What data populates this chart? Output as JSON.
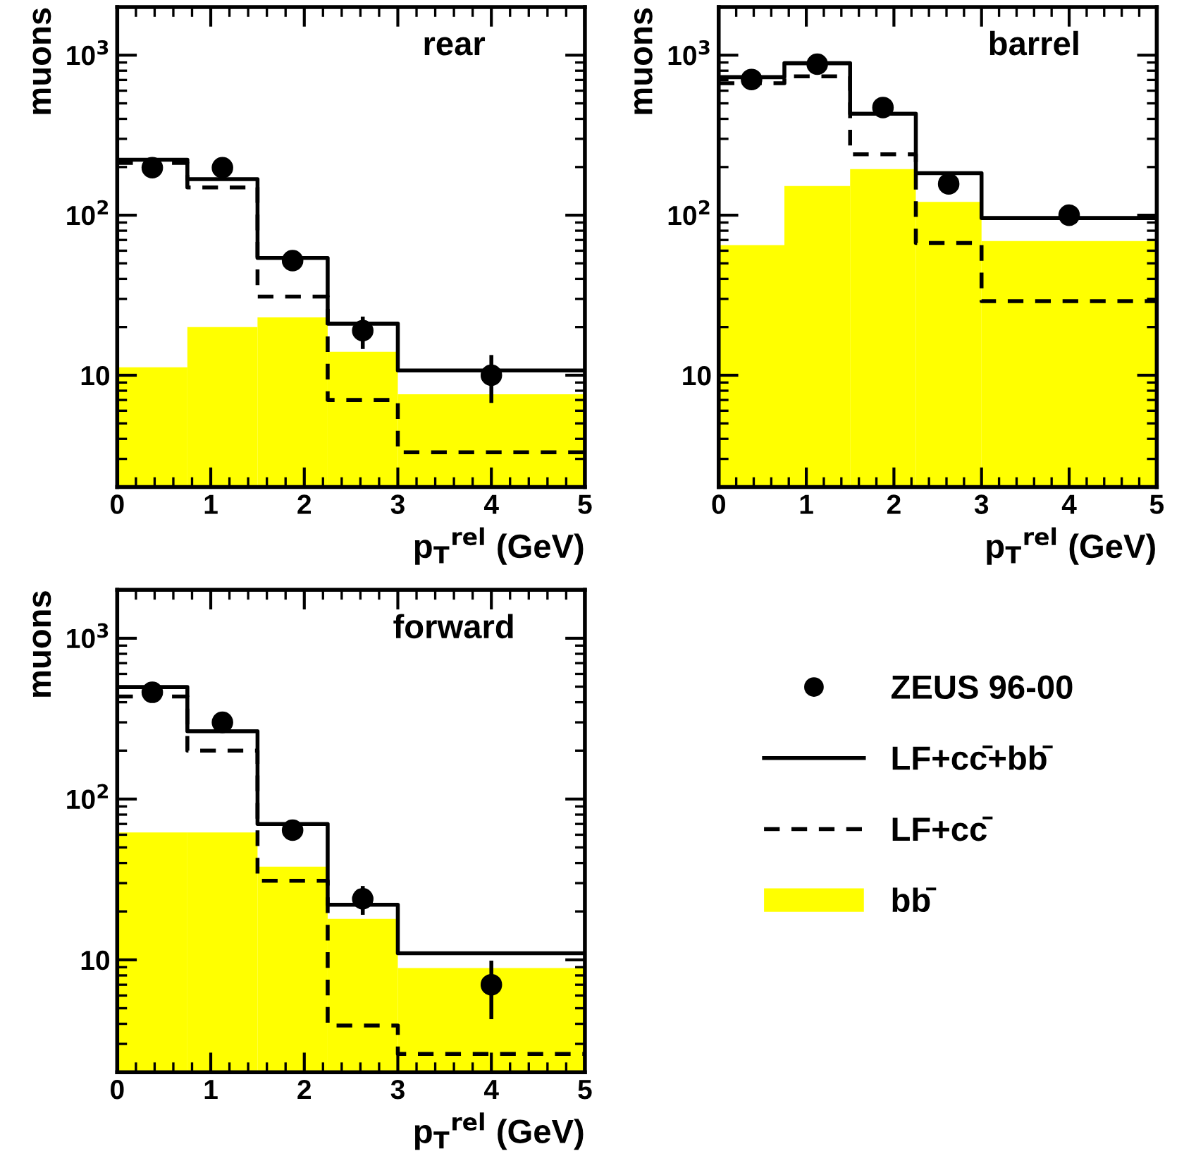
{
  "chart_data": [
    {
      "type": "histogram",
      "bins": [
        0,
        0.75,
        1.5,
        2.25,
        3,
        5
      ],
      "annotations": [
        "rear"
      ],
      "xlabel": "p$_{T}$$^{rel}$ (GeV)",
      "ylabel": "muons",
      "log": "y",
      "grid": false,
      "xlim": [
        0,
        5
      ],
      "xticks": [
        0,
        1,
        2,
        3,
        4,
        5
      ],
      "ylim": [
        2,
        2000
      ],
      "yticks": [
        {
          "value": 10,
          "label": "10"
        },
        {
          "value": 100,
          "label": "10$^{2}$"
        },
        {
          "value": 1000,
          "label": "10$^{3}$"
        }
      ],
      "series": [
        {
          "type": "scatter",
          "marker": "circle",
          "color": "#000000",
          "x": [
            0.375,
            1.125,
            1.875,
            2.625,
            4
          ],
          "values": [
            198,
            198,
            52,
            19,
            10
          ],
          "errors": [
            null,
            null,
            null,
            [
              15,
              22.6
            ],
            [
              6.9,
              13
            ]
          ]
        },
        {
          "type": "step",
          "line_style": "solid",
          "color": "#000000",
          "x": [
            0,
            0.75,
            1.5,
            2.25,
            3,
            5
          ],
          "values": [
            222,
            168,
            54,
            21,
            10.7,
            10.7
          ]
        },
        {
          "type": "step",
          "line_style": "dashed",
          "color": "#000000",
          "x": [
            0,
            0.75,
            1.5,
            2.25,
            3,
            5
          ],
          "values": [
            212,
            149,
            31,
            7.0,
            3.3,
            3.3
          ]
        },
        {
          "color": "#ffff00",
          "values": [
            11.2,
            20,
            23,
            14,
            7.6
          ]
        }
      ]
    },
    {
      "type": "histogram",
      "bins": [
        0,
        0.75,
        1.5,
        2.25,
        3,
        5
      ],
      "annotations": [
        "barrel"
      ],
      "xlabel": "p$_{T}$$^{rel}$ (GeV)",
      "ylabel": "muons",
      "log": "y",
      "grid": false,
      "xlim": [
        0,
        5
      ],
      "xticks": [
        0,
        1,
        2,
        3,
        4,
        5
      ],
      "ylim": [
        2,
        2000
      ],
      "yticks": [
        {
          "value": 10,
          "label": "10"
        },
        {
          "value": 100,
          "label": "10$^{2}$"
        },
        {
          "value": 1000,
          "label": "10$^{3}$"
        }
      ],
      "series": [
        {
          "type": "scatter",
          "marker": "circle",
          "color": "#000000",
          "x": [
            0.375,
            1.125,
            1.875,
            2.625,
            4
          ],
          "values": [
            705,
            879,
            471,
            157,
            100
          ]
        },
        {
          "type": "step",
          "line_style": "solid",
          "color": "#000000",
          "x": [
            0,
            0.75,
            1.5,
            2.25,
            3,
            5
          ],
          "values": [
            729,
            891,
            431,
            183,
            96,
            96
          ]
        },
        {
          "type": "step",
          "line_style": "dashed",
          "color": "#000000",
          "x": [
            0,
            0.75,
            1.5,
            2.25,
            3,
            5
          ],
          "values": [
            668,
            738,
            240,
            67,
            29,
            29
          ]
        },
        {
          "color": "#ffff00",
          "values": [
            65,
            152,
            194,
            121,
            69
          ]
        }
      ]
    },
    {
      "type": "histogram",
      "bins": [
        0,
        0.75,
        1.5,
        2.25,
        3,
        5
      ],
      "annotations": [
        "forward"
      ],
      "xlabel": "p$_{T}$$^{rel}$ (GeV)",
      "ylabel": "muons",
      "log": "y",
      "grid": false,
      "legend": "right",
      "xlim": [
        0,
        5
      ],
      "xticks": [
        0,
        1,
        2,
        3,
        4,
        5
      ],
      "ylim": [
        2,
        2000
      ],
      "yticks": [
        {
          "value": 10,
          "label": "10"
        },
        {
          "value": 100,
          "label": "10$^{2}$"
        },
        {
          "value": 1000,
          "label": "10$^{3}$"
        }
      ],
      "series": [
        {
          "name": "ZEUS 96-00",
          "type": "scatter",
          "marker": "circle",
          "color": "#000000",
          "x": [
            0.375,
            1.125,
            1.875,
            2.625,
            4
          ],
          "values": [
            461,
            300,
            64,
            24,
            7.0
          ],
          "errors": [
            null,
            null,
            null,
            [
              19.6,
              28
            ],
            [
              4.4,
              9.6
            ]
          ]
        },
        {
          "name": "LF+cc̄+bb̄",
          "type": "step",
          "line_style": "solid",
          "color": "#000000",
          "x": [
            0,
            0.75,
            1.5,
            2.25,
            3,
            5
          ],
          "values": [
            497,
            264,
            70,
            22,
            11,
            11
          ]
        },
        {
          "name": "LF+cc̄",
          "type": "step",
          "line_style": "dashed",
          "color": "#000000",
          "x": [
            0,
            0.75,
            1.5,
            2.25,
            3,
            5
          ],
          "values": [
            434,
            200,
            31,
            3.9,
            2.6,
            2.6
          ]
        },
        {
          "name": "bb̄",
          "color": "#ffff00",
          "values": [
            62,
            62,
            38,
            18,
            8.9
          ]
        }
      ]
    }
  ]
}
